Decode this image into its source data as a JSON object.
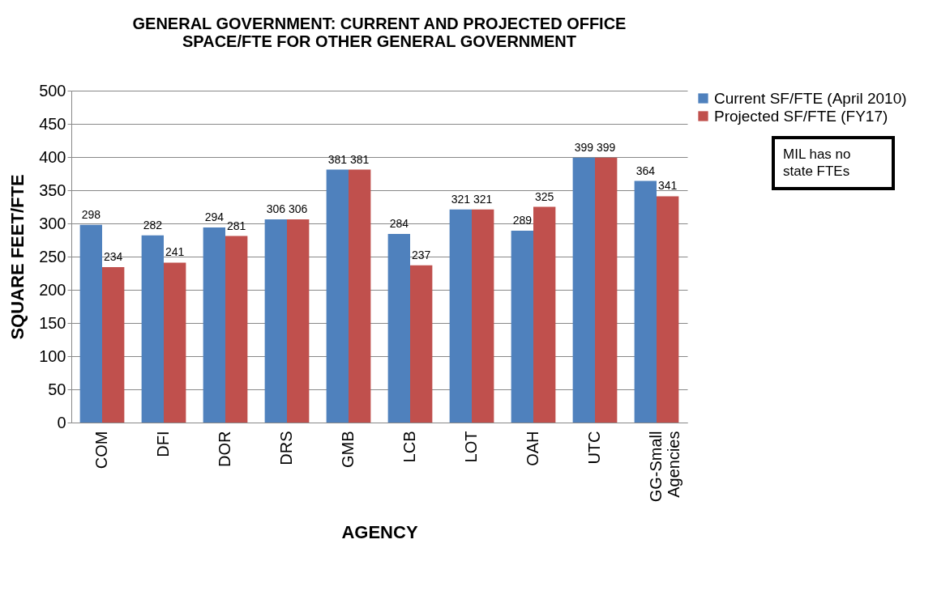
{
  "chart_data": {
    "type": "bar",
    "title": "GENERAL GOVERNMENT: CURRENT AND PROJECTED OFFICE SPACE/FTE FOR OTHER GENERAL GOVERNMENT",
    "xlabel": "AGENCY",
    "ylabel": "SQUARE FEET/FTE",
    "categories": [
      "COM",
      "DFI",
      "DOR",
      "DRS",
      "GMB",
      "LCB",
      "LOT",
      "OAH",
      "UTC",
      "GG-Small Agencies"
    ],
    "series": [
      {
        "name": "Current SF/FTE (April 2010)",
        "color": "#4f81bd",
        "values": [
          298,
          282,
          294,
          306,
          381,
          284,
          321,
          289,
          399,
          364
        ]
      },
      {
        "name": "Projected SF/FTE (FY17)",
        "color": "#c0504d",
        "values": [
          234,
          241,
          281,
          306,
          381,
          237,
          321,
          325,
          399,
          341
        ]
      }
    ],
    "ylim": [
      0,
      500
    ],
    "yticks": [
      0,
      50,
      100,
      150,
      200,
      250,
      300,
      350,
      400,
      450,
      500
    ],
    "grid": "y",
    "legend": "right",
    "data_labels": true,
    "annotations": [
      "MIL has no state FTEs"
    ]
  }
}
